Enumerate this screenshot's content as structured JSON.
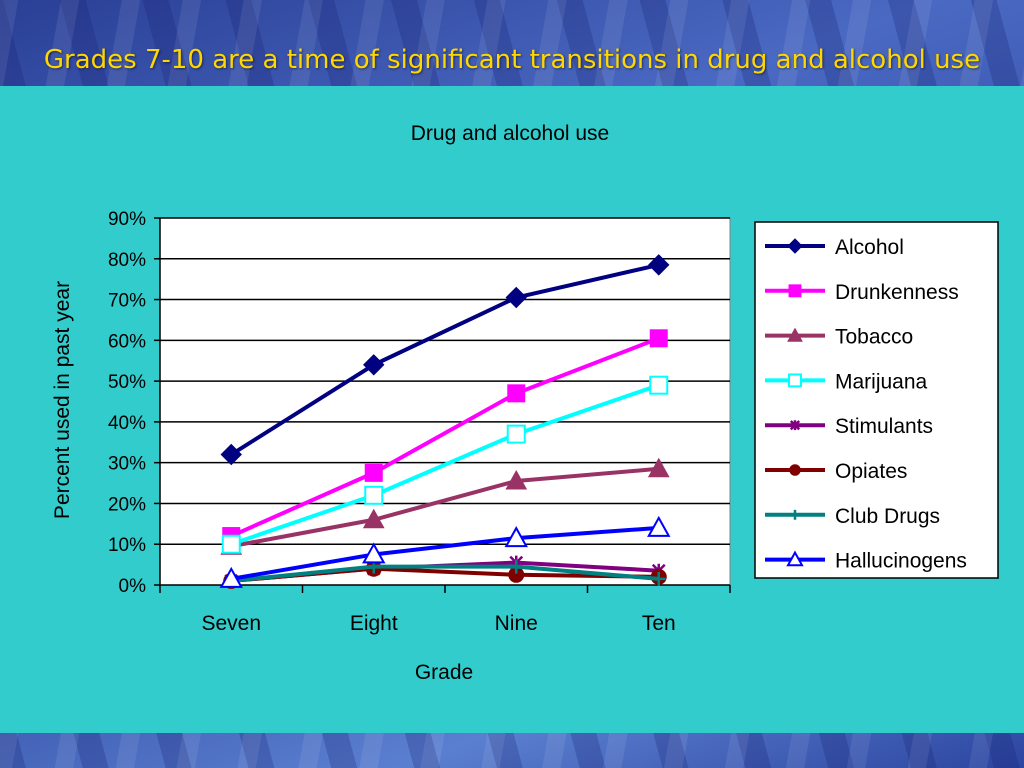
{
  "slide": {
    "title": "Grades 7-10 are a time of significant transitions in drug and alcohol use"
  },
  "colors": {
    "panel_background": "#33cccc",
    "slide_title": "#ffd700"
  },
  "chart_data": {
    "type": "line",
    "title": "Drug and alcohol use",
    "xlabel": "Grade",
    "ylabel": "Percent used in past year",
    "categories": [
      "Seven",
      "Eight",
      "Nine",
      "Ten"
    ],
    "ylim": [
      0,
      90
    ],
    "y_ticks": [
      "0%",
      "10%",
      "20%",
      "30%",
      "40%",
      "50%",
      "60%",
      "70%",
      "80%",
      "90%"
    ],
    "grid": true,
    "legend_position": "right",
    "series": [
      {
        "name": "Alcohol",
        "values": [
          32,
          54,
          70.5,
          78.5
        ],
        "color": "#000080",
        "marker": "diamond"
      },
      {
        "name": "Drunkenness",
        "values": [
          12,
          27.5,
          47,
          60.5
        ],
        "color": "#ff00ff",
        "marker": "square"
      },
      {
        "name": "Tobacco",
        "values": [
          9.5,
          16,
          25.5,
          28.5
        ],
        "color": "#993366",
        "marker": "triangle"
      },
      {
        "name": "Marijuana",
        "values": [
          10,
          22,
          37,
          49
        ],
        "color": "#00ffff",
        "marker": "square-open"
      },
      {
        "name": "Stimulants",
        "values": [
          1,
          4,
          5.5,
          3.5
        ],
        "color": "#800080",
        "marker": "star"
      },
      {
        "name": "Opiates",
        "values": [
          1,
          4,
          2.5,
          2
        ],
        "color": "#800000",
        "marker": "circle"
      },
      {
        "name": "Club Drugs",
        "values": [
          1,
          4.5,
          4.5,
          1.5
        ],
        "color": "#008080",
        "marker": "plus"
      },
      {
        "name": "Hallucinogens",
        "values": [
          1.5,
          7.5,
          11.5,
          14
        ],
        "color": "#0000ff",
        "marker": "triangle-open"
      }
    ]
  }
}
